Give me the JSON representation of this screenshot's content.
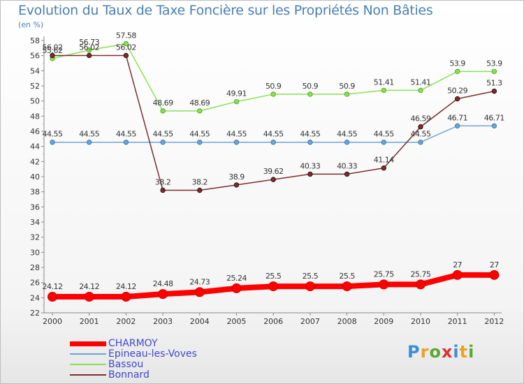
{
  "title": "Evolution du Taux de Taxe Foncière sur les Propriétés Non Bâties",
  "unit": "(en %)",
  "logo": {
    "text": "Proxiti",
    "colors": [
      "#3a8fd8",
      "#f0a020",
      "#5aa832",
      "#e03030",
      "#3a8fd8",
      "#f0a020",
      "#5aa832"
    ]
  },
  "chart_data": {
    "type": "line",
    "x": [
      "2000",
      "2001",
      "2002",
      "2003",
      "2004",
      "2005",
      "2006",
      "2007",
      "2008",
      "2009",
      "2010",
      "2011",
      "2012"
    ],
    "ylim": [
      22,
      58
    ],
    "yticks": [
      22,
      24,
      26,
      28,
      30,
      32,
      34,
      36,
      38,
      40,
      42,
      44,
      46,
      48,
      50,
      52,
      54,
      56,
      58
    ],
    "grid": false,
    "legend_position": "bottom-left",
    "series": [
      {
        "name": "CHARMOY",
        "color": "#ff0000",
        "width": 8,
        "values": [
          24.12,
          24.12,
          24.12,
          24.48,
          24.73,
          25.24,
          25.5,
          25.5,
          25.5,
          25.75,
          25.75,
          27,
          27
        ],
        "labels": [
          "24.12",
          "24.12",
          "24.12",
          "24.48",
          "24.73",
          "25.24",
          "25.5",
          "25.5",
          "25.5",
          "25.75",
          "25.75",
          "27",
          "27"
        ]
      },
      {
        "name": "Epineau-les-Voves",
        "color": "#6fa5d5",
        "width": 1.5,
        "values": [
          44.55,
          44.55,
          44.55,
          44.55,
          44.55,
          44.55,
          44.55,
          44.55,
          44.55,
          44.55,
          44.55,
          46.71,
          46.71
        ],
        "labels": [
          "44.55",
          "44.55",
          "44.55",
          "44.55",
          "44.55",
          "44.55",
          "44.55",
          "44.55",
          "44.55",
          "44.55",
          "44.55",
          "46.71",
          "46.71"
        ]
      },
      {
        "name": "Bassou",
        "color": "#8ce055",
        "width": 1.5,
        "values": [
          55.62,
          56.73,
          57.58,
          48.69,
          48.69,
          49.91,
          50.9,
          50.9,
          50.9,
          51.41,
          51.41,
          53.9,
          53.9
        ],
        "labels": [
          "55.62",
          "56.73",
          "57.58",
          "48.69",
          "48.69",
          "49.91",
          "50.9",
          "50.9",
          "50.9",
          "51.41",
          "51.41",
          "53.9",
          "53.9"
        ]
      },
      {
        "name": "Bonnard",
        "color": "#7a2e2e",
        "width": 1.5,
        "values": [
          56.02,
          56.02,
          56.02,
          38.2,
          38.2,
          38.9,
          39.62,
          40.33,
          40.33,
          41.14,
          46.59,
          50.29,
          51.3
        ],
        "labels": [
          "56.02",
          "56.02",
          "56.02",
          "38.2",
          "38.2",
          "38.9",
          "39.62",
          "40.33",
          "40.33",
          "41.14",
          "46.59",
          "50.29",
          "51.3"
        ]
      }
    ]
  }
}
